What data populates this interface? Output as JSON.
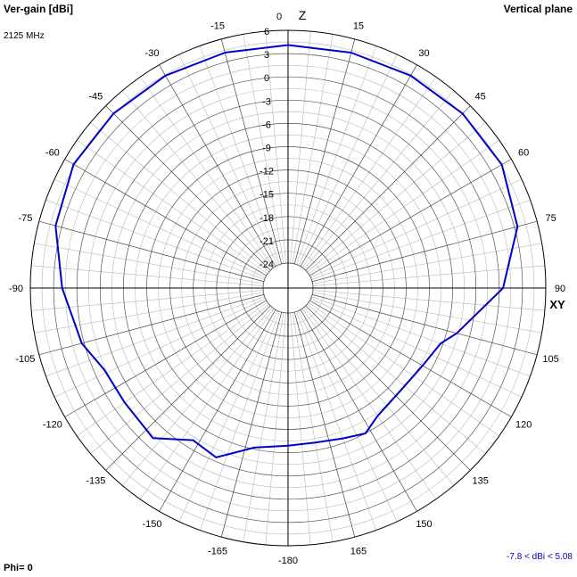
{
  "header": {
    "left_title": "Ver-gain [dBi]",
    "frequency": "2125 MHz",
    "right_title": "Vertical plane"
  },
  "footer": {
    "phi": "Phi= 0",
    "range": "-7.8 < dBi < 5.08"
  },
  "colors": {
    "trace": "#0000cc",
    "grid": "#000000",
    "background": "#ffffff"
  },
  "chart_data": {
    "type": "line",
    "projection": "polar",
    "angle_unit": "deg",
    "radial_ticks": [
      6,
      3,
      0,
      -3,
      -6,
      -9,
      -12,
      -15,
      -18,
      -21,
      -24
    ],
    "angle_labels": [
      {
        "angle": 0,
        "text": "0"
      },
      {
        "angle": 15,
        "text": "15"
      },
      {
        "angle": 30,
        "text": "30"
      },
      {
        "angle": 45,
        "text": "45"
      },
      {
        "angle": 60,
        "text": "60"
      },
      {
        "angle": 75,
        "text": "75"
      },
      {
        "angle": 90,
        "text": "90"
      },
      {
        "angle": 105,
        "text": "105"
      },
      {
        "angle": 120,
        "text": "120"
      },
      {
        "angle": 135,
        "text": "135"
      },
      {
        "angle": 150,
        "text": "150"
      },
      {
        "angle": 165,
        "text": "165"
      },
      {
        "angle": 180,
        "text": "-180"
      },
      {
        "angle": -165,
        "text": "-165"
      },
      {
        "angle": -150,
        "text": "-150"
      },
      {
        "angle": -135,
        "text": "-135"
      },
      {
        "angle": -120,
        "text": "-120"
      },
      {
        "angle": -105,
        "text": "-105"
      },
      {
        "angle": -90,
        "text": "-90"
      },
      {
        "angle": -75,
        "text": "-75"
      },
      {
        "angle": -60,
        "text": "-60"
      },
      {
        "angle": -45,
        "text": "-45"
      },
      {
        "angle": -30,
        "text": "-30"
      },
      {
        "angle": -15,
        "text": "-15"
      }
    ],
    "axis_labels": {
      "top": "Z",
      "right": "XY"
    },
    "series": [
      {
        "points": [
          {
            "angle": 0,
            "gain": 4.1
          },
          {
            "angle": 15,
            "gain": 4.2
          },
          {
            "angle": 30,
            "gain": 4.4
          },
          {
            "angle": 45,
            "gain": 4.6
          },
          {
            "angle": 60,
            "gain": 4.6
          },
          {
            "angle": 75,
            "gain": 3.4
          },
          {
            "angle": 90,
            "gain": 0.5
          },
          {
            "angle": 105,
            "gain": -4.7
          },
          {
            "angle": 110,
            "gain": -6.3
          },
          {
            "angle": 120,
            "gain": -7.2
          },
          {
            "angle": 132,
            "gain": -7.6
          },
          {
            "angle": 145,
            "gain": -7.1
          },
          {
            "angle": 152,
            "gain": -6.0
          },
          {
            "angle": 160,
            "gain": -6.6
          },
          {
            "angle": 170,
            "gain": -7.0
          },
          {
            "angle": 180,
            "gain": -6.9
          },
          {
            "angle": -168,
            "gain": -6.2
          },
          {
            "angle": -157,
            "gain": -3.5
          },
          {
            "angle": -148,
            "gain": -4.1
          },
          {
            "angle": -138,
            "gain": -1.2
          },
          {
            "angle": -125,
            "gain": -1.5
          },
          {
            "angle": -114,
            "gain": -1.3
          },
          {
            "angle": -105,
            "gain": 0.3
          },
          {
            "angle": -90,
            "gain": 1.9
          },
          {
            "angle": -75,
            "gain": 3.8
          },
          {
            "angle": -60,
            "gain": 4.7
          },
          {
            "angle": -45,
            "gain": 4.6
          },
          {
            "angle": -30,
            "gain": 4.4
          },
          {
            "angle": -15,
            "gain": 4.2
          },
          {
            "angle": 0,
            "gain": 4.1
          }
        ]
      }
    ]
  }
}
